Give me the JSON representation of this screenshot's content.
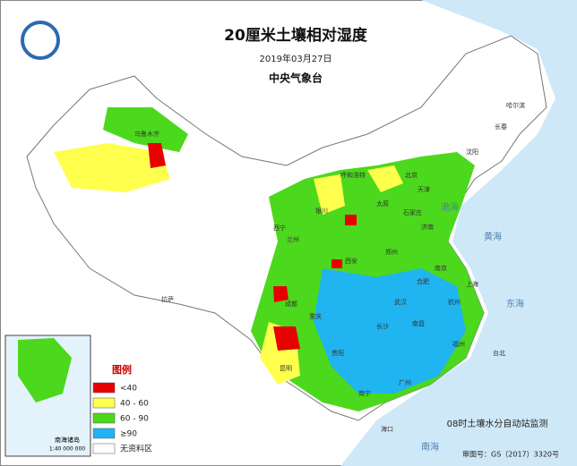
{
  "header": {
    "title": "20厘米土壤相对湿度",
    "date": "2019年03月27日",
    "issuer": "中央气象台"
  },
  "legend": {
    "title": "图例",
    "items": [
      {
        "label": "<40",
        "color": "#e60000"
      },
      {
        "label": "40 - 60",
        "color": "#ffff4d"
      },
      {
        "label": "60 - 90",
        "color": "#4cd81c"
      },
      {
        "label": "≥90",
        "color": "#20b4f0"
      },
      {
        "label": "无资料区",
        "color": "#ffffff"
      }
    ]
  },
  "cities": [
    "乌鲁木齐",
    "哈尔滨",
    "长春",
    "沈阳",
    "呼和浩特",
    "北京",
    "天津",
    "太原",
    "石家庄",
    "济南",
    "银川",
    "西宁",
    "兰州",
    "郑州",
    "西安",
    "南京",
    "上海",
    "合肥",
    "武汉",
    "杭州",
    "成都",
    "重庆",
    "长沙",
    "南昌",
    "福州",
    "贵阳",
    "昆明",
    "南宁",
    "广州",
    "拉萨",
    "海口",
    "台北"
  ],
  "seas": [
    "渤海",
    "黄海",
    "东海",
    "南海"
  ],
  "inset": {
    "label": "南海诸岛",
    "scale": "1:40 000 000"
  },
  "footer": {
    "source": "08时土壤水分自动站监测",
    "approval": "审图号：GS（2017）3320号"
  }
}
